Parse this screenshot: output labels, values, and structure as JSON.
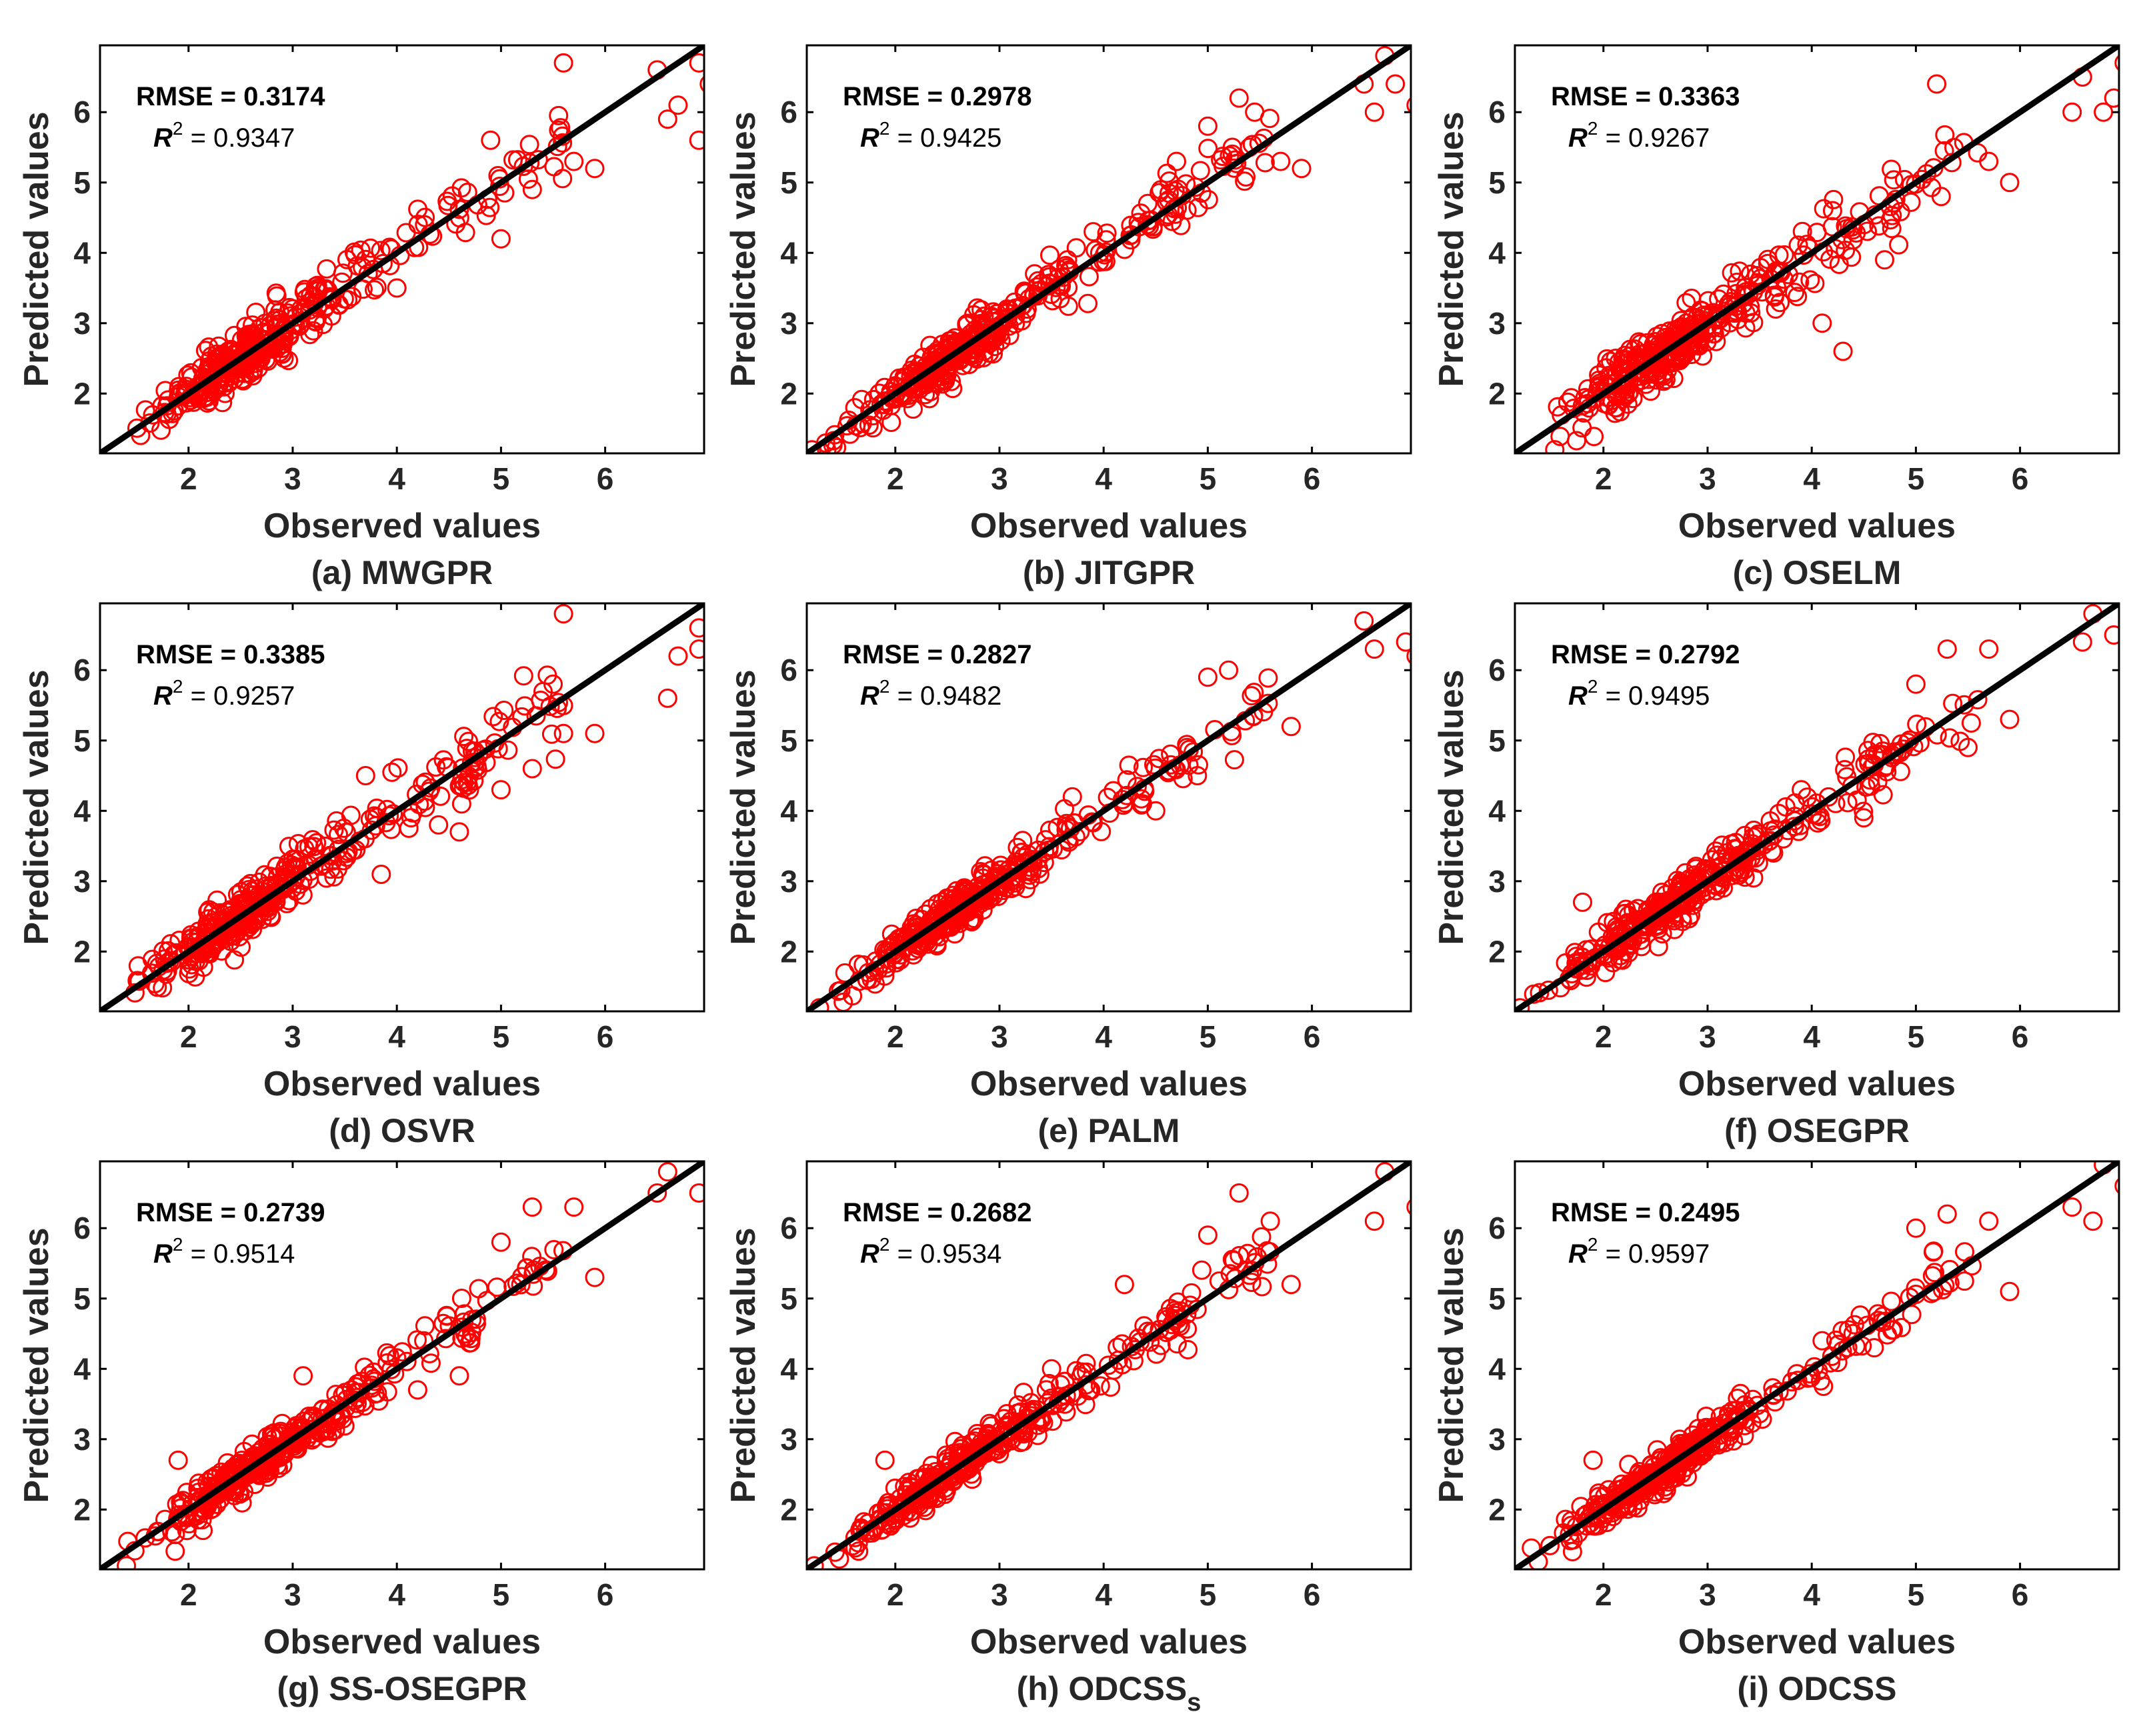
{
  "figure": {
    "common": {
      "xlabel": "Observed values",
      "ylabel": "Predicted values",
      "xlim": [
        1.15,
        6.95
      ],
      "ylim": [
        1.15,
        6.95
      ],
      "xticks": [
        2,
        3,
        4,
        5,
        6
      ],
      "yticks": [
        2,
        3,
        4,
        5,
        6
      ],
      "rmse_prefix": "RMSE = ",
      "r2_symbol": "R",
      "r2_exp": "2",
      "r2_prefix": " = ",
      "marker_color": "#ff0000",
      "line_color": "#000000"
    }
  },
  "chart_data": [
    {
      "type": "scatter",
      "id": "a",
      "title": "(a) MWGPR",
      "title_main": "(a) MWGPR",
      "title_sub": "",
      "rmse": "0.3174",
      "r2": "0.9347",
      "seed": 11,
      "noise": 0.17,
      "outliers": [
        [
          4.0,
          3.5
        ],
        [
          4.9,
          5.6
        ],
        [
          5.0,
          4.2
        ],
        [
          5.3,
          4.9
        ],
        [
          5.7,
          5.3
        ],
        [
          5.9,
          5.2
        ],
        [
          6.5,
          6.6
        ],
        [
          6.6,
          5.9
        ],
        [
          6.7,
          6.1
        ],
        [
          6.9,
          5.6
        ],
        [
          6.9,
          6.7
        ],
        [
          7.0,
          6.4
        ],
        [
          5.6,
          6.7
        ]
      ]
    },
    {
      "type": "scatter",
      "id": "b",
      "title": "(b) JITGPR",
      "title_main": "(b) JITGPR",
      "title_sub": "",
      "rmse": "0.2978",
      "r2": "0.9425",
      "seed": 23,
      "noise": 0.15,
      "outliers": [
        [
          3.9,
          4.3
        ],
        [
          4.7,
          5.3
        ],
        [
          5.0,
          5.8
        ],
        [
          5.3,
          6.2
        ],
        [
          5.4,
          5.5
        ],
        [
          5.7,
          5.3
        ],
        [
          5.9,
          5.2
        ],
        [
          6.5,
          6.4
        ],
        [
          6.6,
          6.0
        ],
        [
          6.8,
          6.4
        ],
        [
          7.0,
          6.1
        ],
        [
          6.7,
          6.8
        ]
      ]
    },
    {
      "type": "scatter",
      "id": "c",
      "title": "(c) OSELM",
      "title_main": "(c) OSELM",
      "title_sub": "",
      "rmse": "0.3363",
      "r2": "0.9267",
      "seed": 37,
      "noise": 0.18,
      "outliers": [
        [
          4.1,
          3.0
        ],
        [
          4.3,
          2.6
        ],
        [
          4.7,
          3.9
        ],
        [
          5.2,
          6.4
        ],
        [
          5.7,
          5.3
        ],
        [
          5.9,
          5.0
        ],
        [
          6.5,
          6.0
        ],
        [
          6.6,
          6.5
        ],
        [
          6.8,
          6.0
        ],
        [
          6.9,
          6.2
        ],
        [
          7.0,
          6.7
        ],
        [
          4.2,
          4.6
        ]
      ]
    },
    {
      "type": "scatter",
      "id": "d",
      "title": "(d) OSVR",
      "title_main": "(d) OSVR",
      "title_sub": "",
      "rmse": "0.3385",
      "r2": "0.9257",
      "seed": 41,
      "noise": 0.18,
      "outliers": [
        [
          3.7,
          4.5
        ],
        [
          4.4,
          3.8
        ],
        [
          4.6,
          3.7
        ],
        [
          5.0,
          4.3
        ],
        [
          5.3,
          4.6
        ],
        [
          5.5,
          5.8
        ],
        [
          5.6,
          5.1
        ],
        [
          5.9,
          5.1
        ],
        [
          6.6,
          5.6
        ],
        [
          6.7,
          6.2
        ],
        [
          6.9,
          6.3
        ],
        [
          6.9,
          6.6
        ],
        [
          5.6,
          6.8
        ]
      ]
    },
    {
      "type": "scatter",
      "id": "e",
      "title": "(e) PALM",
      "title_main": "(e) PALM",
      "title_sub": "",
      "rmse": "0.2827",
      "r2": "0.9482",
      "seed": 53,
      "noise": 0.14,
      "outliers": [
        [
          4.5,
          4.0
        ],
        [
          4.8,
          4.9
        ],
        [
          4.9,
          4.5
        ],
        [
          5.0,
          5.9
        ],
        [
          5.2,
          6.0
        ],
        [
          5.8,
          5.2
        ],
        [
          6.5,
          6.7
        ],
        [
          6.6,
          6.3
        ],
        [
          6.9,
          6.4
        ],
        [
          7.0,
          6.2
        ],
        [
          3.7,
          4.2
        ]
      ]
    },
    {
      "type": "scatter",
      "id": "f",
      "title": "(f) OSEGPR",
      "title_main": "(f) OSEGPR",
      "title_sub": "",
      "rmse": "0.2792",
      "r2": "0.9495",
      "seed": 67,
      "noise": 0.14,
      "outliers": [
        [
          3.9,
          4.3
        ],
        [
          4.5,
          3.9
        ],
        [
          5.0,
          5.8
        ],
        [
          5.3,
          6.3
        ],
        [
          5.7,
          6.3
        ],
        [
          5.9,
          5.3
        ],
        [
          6.6,
          6.4
        ],
        [
          6.7,
          6.8
        ],
        [
          6.9,
          6.5
        ],
        [
          5.5,
          4.9
        ],
        [
          1.8,
          2.7
        ]
      ]
    },
    {
      "type": "scatter",
      "id": "g",
      "title": "(g) SS-OSEGPR",
      "title_main": "(g) SS-OSEGPR",
      "title_sub": "",
      "rmse": "0.2739",
      "r2": "0.9514",
      "seed": 79,
      "noise": 0.135,
      "outliers": [
        [
          4.2,
          3.7
        ],
        [
          4.6,
          3.9
        ],
        [
          5.0,
          5.8
        ],
        [
          5.3,
          6.3
        ],
        [
          5.7,
          6.3
        ],
        [
          5.9,
          5.3
        ],
        [
          6.5,
          6.5
        ],
        [
          6.6,
          6.8
        ],
        [
          6.9,
          6.5
        ],
        [
          1.9,
          2.7
        ],
        [
          3.1,
          3.9
        ]
      ]
    },
    {
      "type": "scatter",
      "id": "h",
      "title": "(h) ODCSSs",
      "title_main": "(h) ODCSS",
      "title_sub": "s",
      "rmse": "0.2682",
      "r2": "0.9534",
      "seed": 97,
      "noise": 0.13,
      "outliers": [
        [
          4.2,
          5.2
        ],
        [
          4.7,
          4.8
        ],
        [
          5.0,
          5.9
        ],
        [
          5.3,
          6.5
        ],
        [
          5.6,
          6.1
        ],
        [
          5.8,
          5.2
        ],
        [
          6.6,
          6.1
        ],
        [
          6.7,
          6.8
        ],
        [
          7.0,
          6.3
        ],
        [
          1.9,
          2.7
        ],
        [
          3.5,
          4.0
        ]
      ]
    },
    {
      "type": "scatter",
      "id": "i",
      "title": "(i) ODCSS",
      "title_main": "(i) ODCSS",
      "title_sub": "",
      "rmse": "0.2495",
      "r2": "0.9597",
      "seed": 101,
      "noise": 0.12,
      "outliers": [
        [
          4.1,
          4.4
        ],
        [
          4.6,
          4.3
        ],
        [
          5.0,
          6.0
        ],
        [
          5.3,
          6.2
        ],
        [
          5.7,
          6.1
        ],
        [
          5.9,
          5.1
        ],
        [
          6.5,
          6.3
        ],
        [
          6.7,
          6.1
        ],
        [
          6.8,
          6.9
        ],
        [
          7.0,
          6.6
        ],
        [
          1.9,
          2.7
        ]
      ]
    }
  ]
}
